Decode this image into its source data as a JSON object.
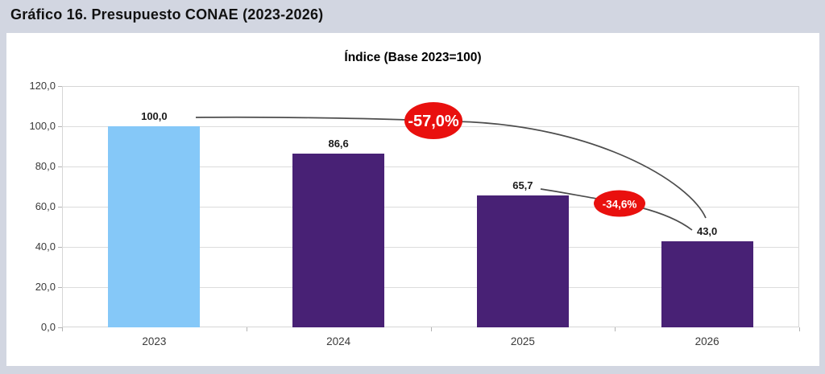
{
  "page": {
    "title": "Gráfico 16. Presupuesto CONAE (2023-2026)"
  },
  "colors": {
    "page_background": "#d2d6e1",
    "canvas_background": "#ffffff",
    "gridline": "#dcdcdc",
    "annotation_red": "#e9100e",
    "annotation_line": "#4d4d4d",
    "bar_blue": "#85c8f8",
    "bar_purple": "#482175"
  },
  "chart_data": {
    "type": "bar",
    "title": "Índice (Base 2023=100)",
    "categories": [
      "2023",
      "2024",
      "2025",
      "2026"
    ],
    "values": [
      100.0,
      86.6,
      65.7,
      43.0
    ],
    "value_labels": [
      "100,0",
      "86,6",
      "65,7",
      "43,0"
    ],
    "bar_colors": [
      "#85c8f8",
      "#482175",
      "#482175",
      "#482175"
    ],
    "xlabel": "",
    "ylabel": "",
    "ylim": [
      0,
      120
    ],
    "ytick_values": [
      0,
      20,
      40,
      60,
      80,
      100,
      120
    ],
    "ytick_labels": [
      "0,0",
      "20,0",
      "40,0",
      "60,0",
      "80,0",
      "100,0",
      "120,0"
    ],
    "grid": true,
    "legend": "none",
    "annotations": [
      {
        "label": "-57,0%",
        "from": "2023",
        "to": "2026",
        "color": "#e9100e"
      },
      {
        "label": "-34,6%",
        "from": "2025",
        "to": "2026",
        "color": "#e9100e"
      }
    ]
  }
}
